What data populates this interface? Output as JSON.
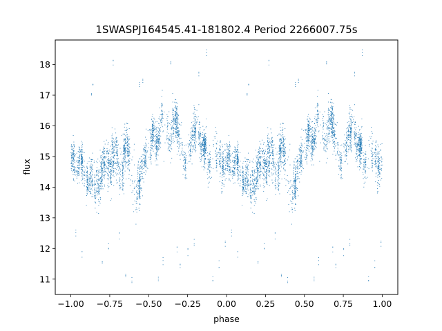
{
  "chart_data": {
    "type": "scatter",
    "title": "1SWASPJ164545.41-181802.4 Period 2266007.75s",
    "xlabel": "phase",
    "ylabel": "flux",
    "xlim": [
      -1.1,
      1.1
    ],
    "ylim": [
      10.5,
      18.8
    ],
    "xticks": [
      -1.0,
      -0.75,
      -0.5,
      -0.25,
      0.0,
      0.25,
      0.5,
      0.75,
      1.0
    ],
    "xtick_labels": [
      "−1.00",
      "−0.75",
      "−0.50",
      "−0.25",
      "0.00",
      "0.25",
      "0.50",
      "0.75",
      "1.00"
    ],
    "yticks": [
      11,
      12,
      13,
      14,
      15,
      16,
      17,
      18
    ],
    "ytick_labels": [
      "11",
      "12",
      "13",
      "14",
      "15",
      "16",
      "17",
      "18"
    ],
    "grid": false,
    "legend": "none",
    "marker_color": "#1f77b4",
    "mirror_phase": true,
    "series": [
      {
        "description_of_data": "light curve points, phase in [0,1), mirrored to [-1,0)",
        "x": [
          0.0,
          0.012,
          0.025,
          0.038,
          0.05,
          0.063,
          0.075,
          0.09,
          0.105,
          0.12,
          0.135,
          0.15,
          0.165,
          0.18,
          0.195,
          0.21,
          0.225,
          0.24,
          0.255,
          0.27,
          0.285,
          0.3,
          0.315,
          0.33,
          0.345,
          0.36,
          0.375,
          0.39,
          0.405,
          0.42,
          0.435,
          0.45,
          0.465,
          0.48,
          0.495,
          0.51,
          0.525,
          0.54,
          0.555,
          0.57,
          0.585,
          0.6,
          0.615,
          0.63,
          0.645,
          0.66,
          0.675,
          0.69,
          0.705,
          0.72,
          0.735,
          0.75,
          0.765,
          0.78,
          0.795,
          0.81,
          0.825,
          0.84,
          0.855,
          0.87,
          0.885,
          0.9,
          0.915,
          0.93,
          0.945,
          0.96,
          0.975,
          0.99
        ],
        "y": [
          14.9,
          15.1,
          14.7,
          14.5,
          15.0,
          15.2,
          14.6,
          14.3,
          14.0,
          14.2,
          14.4,
          14.1,
          13.9,
          14.3,
          14.6,
          14.8,
          15.0,
          14.7,
          14.5,
          14.9,
          15.1,
          14.8,
          14.4,
          14.6,
          15.2,
          15.4,
          15.0,
          14.6,
          14.2,
          13.8,
          14.0,
          14.4,
          14.8,
          15.1,
          15.3,
          15.6,
          15.8,
          15.4,
          15.6,
          15.9,
          16.2,
          16.0,
          15.7,
          15.5,
          15.9,
          16.2,
          16.1,
          15.8,
          15.4,
          15.0,
          14.8,
          15.2,
          15.5,
          15.7,
          15.9,
          16.1,
          15.8,
          15.5,
          15.3,
          15.0,
          14.7,
          14.9,
          15.1,
          15.3,
          15.0,
          14.8,
          14.6,
          14.9
        ],
        "spread": [
          0.9,
          0.9,
          0.8,
          0.8,
          0.8,
          0.8,
          0.8,
          0.9,
          0.8,
          0.8,
          0.9,
          0.9,
          0.9,
          0.9,
          0.9,
          1.0,
          1.0,
          1.0,
          1.0,
          1.0,
          1.0,
          1.0,
          1.0,
          1.0,
          1.0,
          1.0,
          1.0,
          1.0,
          1.0,
          1.0,
          1.0,
          0.9,
          0.9,
          0.9,
          0.9,
          0.9,
          0.9,
          0.9,
          0.9,
          0.9,
          0.9,
          0.9,
          0.9,
          0.9,
          0.9,
          0.9,
          0.9,
          0.9,
          0.9,
          0.9,
          0.9,
          0.9,
          0.9,
          0.9,
          0.9,
          0.9,
          0.9,
          0.9,
          0.9,
          0.9,
          0.9,
          0.9,
          0.9,
          0.9,
          0.9,
          0.9,
          0.9,
          0.9
        ],
        "outliers": [
          [
            0.13,
            17.1
          ],
          [
            0.14,
            17.3
          ],
          [
            0.2,
            11.5
          ],
          [
            0.24,
            12.1
          ],
          [
            0.27,
            18.1
          ],
          [
            0.31,
            12.4
          ],
          [
            0.35,
            11.2
          ],
          [
            0.44,
            17.4
          ],
          [
            0.46,
            17.5
          ],
          [
            0.56,
            11.0
          ],
          [
            0.59,
            11.6
          ],
          [
            0.68,
            12.0
          ],
          [
            0.7,
            11.4
          ],
          [
            0.79,
            12.2
          ],
          [
            0.82,
            17.7
          ],
          [
            0.87,
            18.4
          ],
          [
            0.91,
            11.0
          ],
          [
            0.99,
            12.2
          ],
          [
            0.07,
            11.8
          ],
          [
            0.39,
            11.0
          ],
          [
            0.64,
            18.0
          ],
          [
            0.75,
            11.9
          ],
          [
            0.95,
            11.5
          ],
          [
            0.03,
            12.5
          ]
        ]
      }
    ]
  }
}
